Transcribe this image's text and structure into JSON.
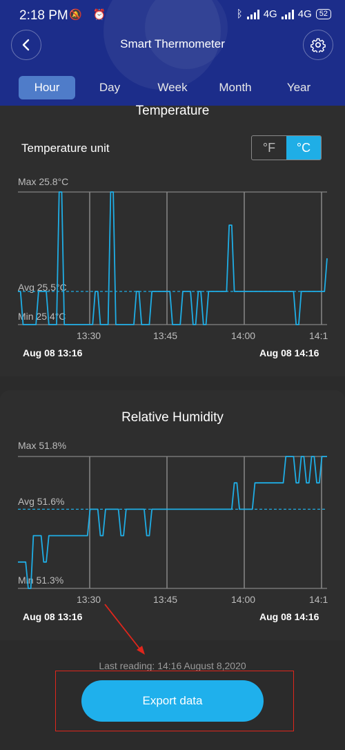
{
  "status_bar": {
    "time": "2:18 PM",
    "left_icons": "🔕 ⏰",
    "network1": "4G",
    "network2": "4G",
    "battery": "52"
  },
  "header": {
    "title": "Smart Thermometer"
  },
  "tabs": [
    {
      "label": "Hour",
      "active": true
    },
    {
      "label": "Day",
      "active": false
    },
    {
      "label": "Week",
      "active": false
    },
    {
      "label": "Month",
      "active": false
    },
    {
      "label": "Year",
      "active": false
    }
  ],
  "temperature": {
    "title": "Temperature",
    "unit_label": "Temperature unit",
    "unit_f": "°F",
    "unit_c": "°C",
    "selected_unit": "°C"
  },
  "humidity": {
    "title": "Relative Humidity"
  },
  "footer": {
    "last_reading": "Last reading: 14:16 August 8,2020",
    "export_label": "Export data"
  },
  "colors": {
    "accent": "#1faee6",
    "header_bg": "#1c2d8a",
    "tab_active": "#4f7cc9",
    "annotation": "#e0261c"
  },
  "chart_data": [
    {
      "type": "line",
      "title": "Temperature",
      "max_label": "Max 25.8°C",
      "avg_label": "Avg 25.5°C",
      "min_label": "Min 25.4°C",
      "x_ticks": [
        "13:30",
        "13:45",
        "14:00",
        "14:1"
      ],
      "start_label": "Aug 08 13:16",
      "end_label": "Aug 08 14:16",
      "ylim": [
        25.4,
        25.8
      ],
      "avg": 25.5,
      "series": [
        {
          "t": [
            0,
            1,
            2,
            3,
            4,
            5,
            6,
            7,
            8,
            9,
            10,
            11,
            12,
            13,
            14,
            15,
            16,
            17,
            18,
            19,
            20,
            21,
            22,
            23,
            24,
            25,
            26,
            27,
            28,
            29,
            30,
            31,
            32,
            33,
            34,
            35,
            36,
            37,
            38,
            39,
            40,
            41,
            42,
            43,
            44,
            45,
            46,
            47,
            48,
            49,
            50,
            51,
            52,
            53,
            54,
            55,
            56,
            57,
            58,
            59,
            60
          ],
          "values": [
            25.5,
            25.4,
            25.4,
            25.4,
            25.5,
            25.5,
            25.4,
            25.4,
            25.8,
            25.4,
            25.4,
            25.4,
            25.4,
            25.4,
            25.4,
            25.5,
            25.4,
            25.4,
            25.8,
            25.4,
            25.4,
            25.4,
            25.4,
            25.5,
            25.4,
            25.4,
            25.5,
            25.5,
            25.5,
            25.5,
            25.4,
            25.4,
            25.5,
            25.5,
            25.4,
            25.5,
            25.4,
            25.5,
            25.5,
            25.5,
            25.5,
            25.7,
            25.5,
            25.5,
            25.5,
            25.5,
            25.5,
            25.5,
            25.5,
            25.5,
            25.5,
            25.5,
            25.5,
            25.5,
            25.4,
            25.5,
            25.5,
            25.5,
            25.5,
            25.5,
            25.6
          ]
        }
      ]
    },
    {
      "type": "line",
      "title": "Relative Humidity",
      "max_label": "Max 51.8%",
      "avg_label": "Avg 51.6%",
      "min_label": "Min 51.3%",
      "x_ticks": [
        "13:30",
        "13:45",
        "14:00",
        "14:1"
      ],
      "start_label": "Aug 08 13:16",
      "end_label": "Aug 08 14:16",
      "ylim": [
        51.3,
        51.8
      ],
      "avg": 51.6,
      "series": [
        {
          "t": [
            0,
            1,
            2,
            3,
            4,
            5,
            6,
            7,
            8,
            9,
            10,
            11,
            12,
            13,
            14,
            15,
            16,
            17,
            18,
            19,
            20,
            21,
            22,
            23,
            24,
            25,
            26,
            27,
            28,
            29,
            30,
            31,
            32,
            33,
            34,
            35,
            36,
            37,
            38,
            39,
            40,
            41,
            42,
            43,
            44,
            45,
            46,
            47,
            48,
            49,
            50,
            51,
            52,
            53,
            54,
            55,
            56,
            57,
            58,
            59,
            60
          ],
          "values": [
            51.4,
            51.4,
            51.3,
            51.5,
            51.5,
            51.4,
            51.5,
            51.5,
            51.5,
            51.5,
            51.5,
            51.5,
            51.5,
            51.5,
            51.6,
            51.6,
            51.5,
            51.6,
            51.6,
            51.6,
            51.5,
            51.6,
            51.6,
            51.6,
            51.6,
            51.5,
            51.6,
            51.6,
            51.6,
            51.6,
            51.6,
            51.6,
            51.6,
            51.6,
            51.6,
            51.6,
            51.6,
            51.6,
            51.6,
            51.6,
            51.6,
            51.6,
            51.7,
            51.6,
            51.6,
            51.6,
            51.7,
            51.7,
            51.7,
            51.7,
            51.7,
            51.7,
            51.8,
            51.8,
            51.7,
            51.8,
            51.7,
            51.8,
            51.7,
            51.8,
            51.8
          ]
        }
      ]
    }
  ]
}
